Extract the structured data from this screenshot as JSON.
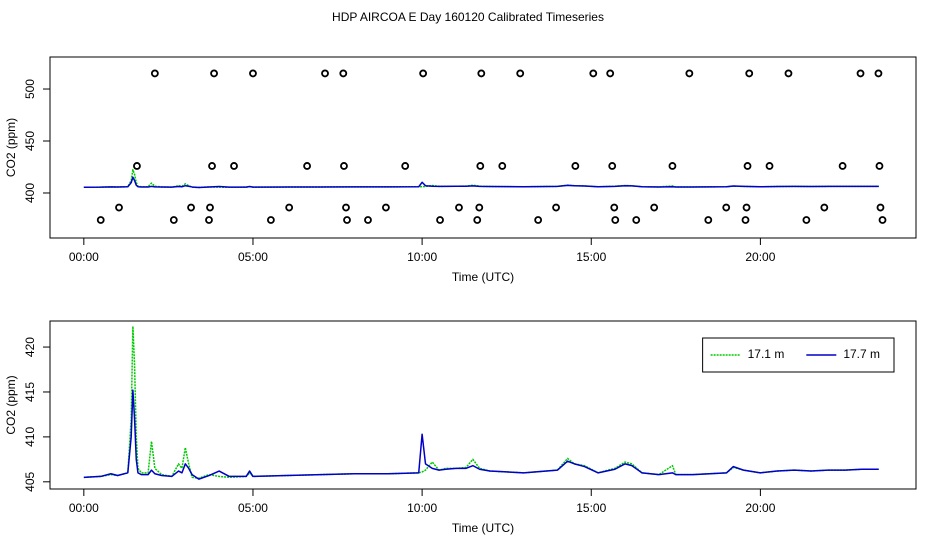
{
  "title": "HDP AIRCOA E  Day 160120  Calibrated Timeseries",
  "chart_data": [
    {
      "type": "line",
      "xlabel": "Time (UTC)",
      "ylabel": "CO2 (ppm)",
      "xlim": [
        -1,
        24.6
      ],
      "xticks": [
        {
          "value": 0,
          "label": "00:00"
        },
        {
          "value": 5,
          "label": "05:00"
        },
        {
          "value": 10,
          "label": "10:00"
        },
        {
          "value": 15,
          "label": "15:00"
        },
        {
          "value": 20,
          "label": "20:00"
        }
      ],
      "ylim": [
        356.7,
        530.8
      ],
      "yticks": [
        400,
        450,
        500
      ],
      "x": [
        0,
        0.5,
        0.8,
        1.0,
        1.3,
        1.4,
        1.45,
        1.5,
        1.55,
        1.6,
        1.7,
        1.9,
        2.0,
        2.1,
        2.3,
        2.6,
        2.8,
        2.9,
        3.0,
        3.1,
        3.2,
        3.4,
        3.7,
        4.0,
        4.3,
        4.8,
        4.9,
        5.0,
        6,
        7,
        8,
        9,
        9.9,
        10.0,
        10.1,
        10.3,
        10.5,
        10.7,
        11,
        11.3,
        11.5,
        11.7,
        12,
        13,
        14,
        14.3,
        14.5,
        14.8,
        15.2,
        15.7,
        16.0,
        16.2,
        16.5,
        17,
        17.4,
        17.5,
        18,
        19,
        19.2,
        19.5,
        20,
        20.5,
        21,
        21.5,
        22,
        22.5,
        23,
        23.5
      ],
      "series": [
        {
          "color": "#00c800",
          "linestyle": "dotted",
          "values": [
            405.5,
            405.6,
            405.8,
            405.7,
            406,
            412,
            422.3,
            418,
            410,
            406.5,
            406,
            406,
            409.5,
            406.5,
            405.8,
            405.6,
            407,
            406.5,
            408.8,
            407,
            405.5,
            405.4,
            405.8,
            405.6,
            405.5,
            405.6,
            406,
            405.6,
            405.7,
            405.8,
            405.9,
            405.9,
            406,
            406.1,
            406.3,
            407.2,
            406.3,
            406.5,
            406.5,
            406.6,
            407.5,
            406.5,
            406.2,
            406,
            406.3,
            407.6,
            407,
            406.8,
            406,
            406.5,
            407.2,
            407,
            406,
            405.8,
            406.8,
            405.8,
            405.8,
            406,
            406.6,
            406.3,
            406,
            406.2,
            406.3,
            406.2,
            406.3,
            406.3,
            406.4,
            406.4
          ]
        },
        {
          "color": "#0000c8",
          "linestyle": "solid",
          "values": [
            405.5,
            405.6,
            405.9,
            405.7,
            406,
            410,
            415.2,
            412,
            407.5,
            406,
            405.8,
            405.8,
            406.3,
            405.9,
            405.7,
            405.6,
            406.2,
            406,
            407,
            406.5,
            405.8,
            405.3,
            405.7,
            406.2,
            405.6,
            405.6,
            406.2,
            405.6,
            405.7,
            405.8,
            405.9,
            405.9,
            406,
            410.3,
            407,
            406.5,
            406.3,
            406.4,
            406.5,
            406.5,
            406.8,
            406.4,
            406.2,
            406,
            406.3,
            407.3,
            407,
            406.7,
            406,
            406.4,
            407,
            406.8,
            406,
            405.8,
            406,
            405.8,
            405.8,
            406,
            406.7,
            406.3,
            406,
            406.2,
            406.3,
            406.2,
            406.3,
            406.3,
            406.4,
            406.4
          ]
        }
      ],
      "markers": {
        "color": "#000000",
        "x": [
          2.1,
          3.85,
          5.0,
          7.13,
          7.67,
          10.03,
          11.75,
          12.9,
          15.06,
          15.56,
          17.9,
          19.67,
          20.83,
          22.96,
          23.49,
          1.57,
          3.79,
          4.44,
          6.6,
          7.69,
          9.5,
          11.72,
          12.37,
          14.53,
          15.62,
          17.4,
          19.62,
          20.27,
          22.43,
          23.52,
          1.04,
          3.17,
          3.73,
          6.07,
          7.75,
          8.93,
          11.09,
          11.69,
          13.96,
          15.68,
          16.86,
          18.99,
          19.59,
          21.89,
          23.55,
          0.5,
          2.66,
          3.7,
          5.53,
          7.78,
          8.4,
          10.53,
          11.63,
          13.43,
          15.71,
          16.33,
          18.46,
          19.56,
          21.36,
          23.61
        ],
        "values": [
          515,
          515,
          515,
          515,
          515,
          515,
          515,
          515,
          515,
          515,
          515,
          515,
          515,
          515,
          515,
          426,
          426,
          426,
          426,
          426,
          426,
          426,
          426,
          426,
          426,
          426,
          426,
          426,
          426,
          426,
          386,
          386,
          386,
          386,
          386,
          386,
          386,
          386,
          386,
          386,
          386,
          386,
          386,
          386,
          386,
          374,
          374,
          374,
          374,
          374,
          374,
          374,
          374,
          374,
          374,
          374,
          374,
          374,
          374,
          374
        ]
      }
    },
    {
      "type": "line",
      "xlabel": "Time (UTC)",
      "ylabel": "CO2 (ppm)",
      "legend": "top right",
      "xlim": [
        -1,
        24.6
      ],
      "xticks": [
        {
          "value": 0,
          "label": "00:00"
        },
        {
          "value": 5,
          "label": "05:00"
        },
        {
          "value": 10,
          "label": "10:00"
        },
        {
          "value": 15,
          "label": "15:00"
        },
        {
          "value": 20,
          "label": "20:00"
        }
      ],
      "ylim": [
        404.2,
        422.9
      ],
      "yticks": [
        405,
        410,
        415,
        420
      ],
      "x": [
        0,
        0.5,
        0.8,
        1.0,
        1.3,
        1.4,
        1.45,
        1.5,
        1.55,
        1.6,
        1.7,
        1.9,
        2.0,
        2.1,
        2.3,
        2.6,
        2.8,
        2.9,
        3.0,
        3.1,
        3.2,
        3.4,
        3.7,
        4.0,
        4.3,
        4.8,
        4.9,
        5.0,
        6,
        7,
        8,
        9,
        9.9,
        10.0,
        10.1,
        10.3,
        10.5,
        10.7,
        11,
        11.3,
        11.5,
        11.7,
        12,
        13,
        14,
        14.3,
        14.5,
        14.8,
        15.2,
        15.7,
        16.0,
        16.2,
        16.5,
        17,
        17.4,
        17.5,
        18,
        19,
        19.2,
        19.5,
        20,
        20.5,
        21,
        21.5,
        22,
        22.5,
        23,
        23.5
      ],
      "series": [
        {
          "name": "17.1 m",
          "color": "#00c800",
          "linestyle": "dotted",
          "values": [
            405.5,
            405.6,
            405.8,
            405.7,
            406,
            412,
            422.3,
            418,
            410,
            406.5,
            406,
            406,
            409.5,
            406.5,
            405.8,
            405.6,
            407,
            406.5,
            408.8,
            407,
            405.5,
            405.4,
            405.8,
            405.6,
            405.5,
            405.6,
            406,
            405.6,
            405.7,
            405.8,
            405.9,
            405.9,
            406,
            406.1,
            406.3,
            407.2,
            406.3,
            406.5,
            406.5,
            406.6,
            407.5,
            406.5,
            406.2,
            406,
            406.3,
            407.6,
            407,
            406.8,
            406,
            406.5,
            407.2,
            407,
            406,
            405.8,
            406.8,
            405.8,
            405.8,
            406,
            406.6,
            406.3,
            406,
            406.2,
            406.3,
            406.2,
            406.3,
            406.3,
            406.4,
            406.4
          ]
        },
        {
          "name": "17.7 m",
          "color": "#0000c8",
          "linestyle": "solid",
          "values": [
            405.5,
            405.6,
            405.9,
            405.7,
            406,
            410,
            415.2,
            412,
            407.5,
            406,
            405.8,
            405.8,
            406.3,
            405.9,
            405.7,
            405.6,
            406.2,
            406,
            407,
            406.5,
            405.8,
            405.3,
            405.7,
            406.2,
            405.6,
            405.6,
            406.2,
            405.6,
            405.7,
            405.8,
            405.9,
            405.9,
            406,
            410.3,
            407,
            406.5,
            406.3,
            406.4,
            406.5,
            406.5,
            406.8,
            406.4,
            406.2,
            406,
            406.3,
            407.3,
            407,
            406.7,
            406,
            406.4,
            407,
            406.8,
            406,
            405.8,
            406,
            405.8,
            405.8,
            406,
            406.7,
            406.3,
            406,
            406.2,
            406.3,
            406.2,
            406.3,
            406.3,
            406.4,
            406.4
          ]
        }
      ]
    }
  ]
}
